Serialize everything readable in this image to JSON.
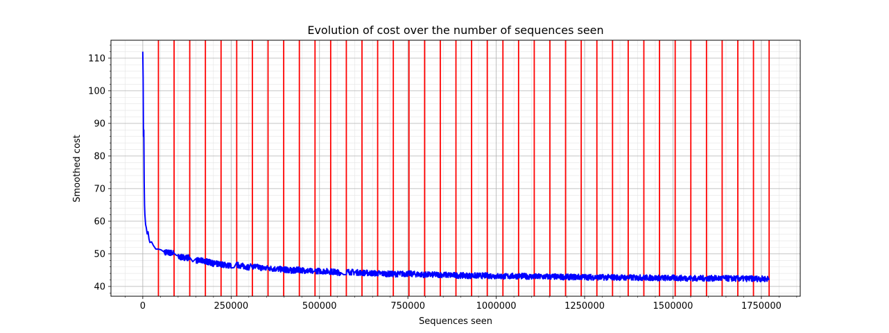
{
  "chart_data": {
    "type": "line",
    "title": "Evolution of cost over the number of sequences seen",
    "xlabel": "Sequences seen",
    "ylabel": "Smoothed cost",
    "xlim": [
      -90000,
      1860000
    ],
    "ylim": [
      37,
      115.5
    ],
    "xticks": [
      0,
      250000,
      500000,
      750000,
      1000000,
      1250000,
      1500000,
      1750000
    ],
    "xtick_labels": [
      "0",
      "250000",
      "500000",
      "750000",
      "1000000",
      "1250000",
      "1500000",
      "1750000"
    ],
    "yticks": [
      40,
      50,
      60,
      70,
      80,
      90,
      100,
      110
    ],
    "ytick_labels": [
      "40",
      "50",
      "60",
      "70",
      "80",
      "90",
      "100",
      "110"
    ],
    "grid": true,
    "minor_grid": true,
    "series": [
      {
        "color": "#0000ff",
        "x": [
          0,
          1000,
          2000,
          3000,
          4000,
          5000,
          6000,
          8000,
          10000,
          15000,
          20000,
          30000,
          44000,
          60000,
          88000,
          100000,
          133000,
          150000,
          177000,
          200000,
          221000,
          250000,
          266000,
          300000,
          310000,
          350000,
          354000,
          399000,
          420000,
          443000,
          480000,
          487000,
          531000,
          560000,
          576000,
          620000,
          664000,
          709000,
          753000,
          797000,
          842000,
          886000,
          930000,
          975000,
          1019000,
          1063000,
          1108000,
          1152000,
          1196000,
          1241000,
          1285000,
          1329000,
          1374000,
          1418000,
          1462000,
          1506000,
          1551000,
          1595000,
          1639000,
          1684000,
          1728000,
          1772000
        ],
        "y": [
          112,
          104,
          86,
          88,
          72,
          65,
          62,
          59,
          58,
          56,
          54,
          52.5,
          51,
          50.5,
          50.2,
          49,
          48.8,
          48,
          47.8,
          47,
          46.8,
          46.3,
          46.6,
          45.9,
          46.2,
          45.5,
          45.6,
          45.2,
          44.9,
          45.1,
          44.6,
          44.8,
          44.6,
          44.2,
          44.5,
          44.2,
          44.0,
          43.8,
          43.9,
          43.6,
          43.6,
          43.4,
          43.3,
          43.3,
          43.1,
          43.2,
          43.0,
          43.0,
          42.9,
          42.9,
          42.8,
          42.8,
          42.7,
          42.7,
          42.6,
          42.6,
          42.5,
          42.5,
          42.5,
          42.4,
          42.4,
          42.3
        ]
      }
    ],
    "vlines": {
      "color": "#ff0000",
      "x": [
        44300,
        88600,
        132900,
        177200,
        221500,
        265800,
        310100,
        354400,
        398700,
        443000,
        487300,
        531600,
        575900,
        620200,
        664500,
        708800,
        753100,
        797400,
        841700,
        886000,
        930300,
        974600,
        1018900,
        1063200,
        1107500,
        1151800,
        1196100,
        1240400,
        1284700,
        1329000,
        1373300,
        1417600,
        1461900,
        1506200,
        1550500,
        1594800,
        1639100,
        1683400,
        1727700,
        1772000
      ]
    }
  }
}
